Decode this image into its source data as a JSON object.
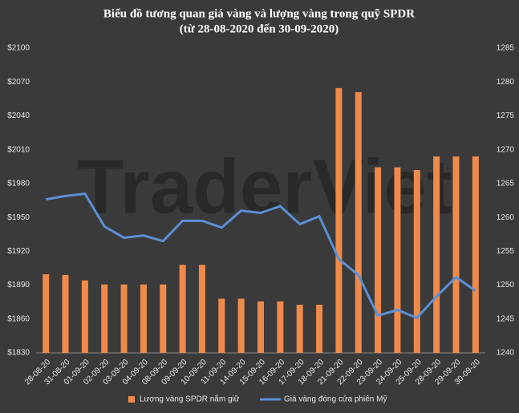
{
  "chart_data": {
    "type": "combo",
    "title": "Biểu đồ tương quan giá vàng và lượng vàng trong quỹ SPDR",
    "subtitle": "(từ 28-08-2020 đến 30-09-2020)",
    "watermark": "TraderViet",
    "categories": [
      "28-08-20",
      "31-08-20",
      "01-09-20",
      "02-09-20",
      "03-09-20",
      "04-09-20",
      "08-09-20",
      "09-09-20",
      "10-09-20",
      "11-09-20",
      "14-09-20",
      "15-09-20",
      "16-09-20",
      "17-09-20",
      "18-09-20",
      "21-09-20",
      "22-09-20",
      "23-09-20",
      "24-09-20",
      "25-09-20",
      "28-09-20",
      "29-09-20",
      "30-09-20"
    ],
    "series": [
      {
        "name": "Lượng vàng SPDR nắm giữ",
        "type": "bar",
        "axis": "y2",
        "color": "#f08a4b",
        "values": [
          1251.6,
          1251.5,
          1250.7,
          1250.1,
          1250.1,
          1250.1,
          1250.1,
          1253.0,
          1253.0,
          1248.0,
          1248.0,
          1247.6,
          1247.6,
          1247.1,
          1247.1,
          1279.1,
          1278.5,
          1267.4,
          1267.4,
          1267.0,
          1269.0,
          1269.0,
          1269.0
        ]
      },
      {
        "name": "Giá vàng đóng cửa phiên Mỹ",
        "type": "line",
        "axis": "y",
        "color": "#5b8fd6",
        "values": [
          1966,
          1969,
          1971,
          1942,
          1932,
          1934,
          1929,
          1947,
          1947,
          1941,
          1956,
          1954,
          1960,
          1944,
          1951,
          1913,
          1899,
          1863,
          1868,
          1861,
          1880,
          1897,
          1885
        ]
      }
    ],
    "ylim": [
      1830,
      2100
    ],
    "yticks": [
      {
        "value": 1830,
        "label": "$1830"
      },
      {
        "value": 1860,
        "label": "$1860"
      },
      {
        "value": 1890,
        "label": "$1890"
      },
      {
        "value": 1920,
        "label": "$1920"
      },
      {
        "value": 1950,
        "label": "$1950"
      },
      {
        "value": 1980,
        "label": "$1980"
      },
      {
        "value": 2010,
        "label": "$2010"
      },
      {
        "value": 2040,
        "label": "$2040"
      },
      {
        "value": 2070,
        "label": "$2070"
      },
      {
        "value": 2100,
        "label": "$2100"
      }
    ],
    "y2lim": [
      1240,
      1285
    ],
    "y2ticks": [
      1240,
      1245,
      1250,
      1255,
      1260,
      1265,
      1270,
      1275,
      1280,
      1285
    ],
    "grid": false,
    "legend": "bottom"
  }
}
